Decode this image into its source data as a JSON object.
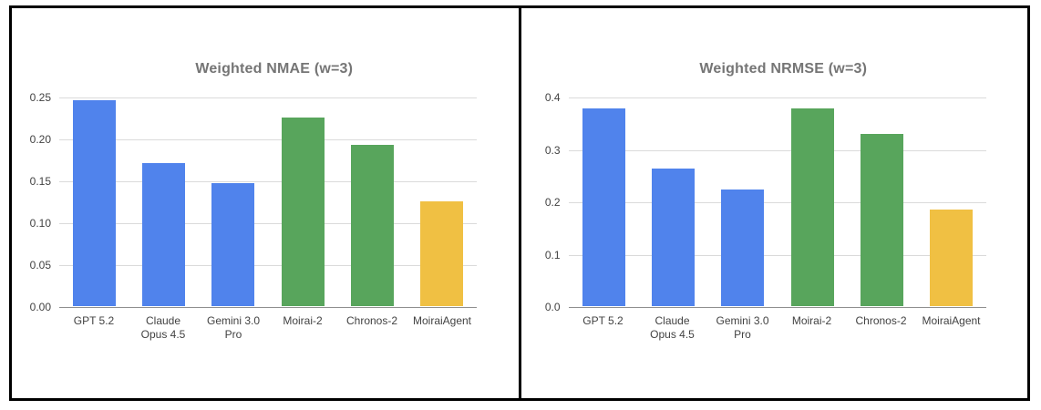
{
  "styles": {
    "frame_border_color": "#000000",
    "title_color": "#757575",
    "axis_label_color": "#424242",
    "gridline_color": "#dadada",
    "baseline_color": "#8f8f8f",
    "background_color": "#ffffff",
    "blue": "#5083ec",
    "green": "#58a55c",
    "yellow": "#f0c043"
  },
  "chart_data": [
    {
      "type": "bar",
      "title": "Weighted NMAE (w=3)",
      "categories": [
        "GPT 5.2",
        "Claude Opus 4.5",
        "Gemini 3.0 Pro",
        "Moirai-2",
        "Chronos-2",
        "MoiraiAgent"
      ],
      "category_label_lines": [
        [
          "GPT 5.2"
        ],
        [
          "Claude",
          "Opus 4.5"
        ],
        [
          "Gemini 3.0",
          "Pro"
        ],
        [
          "Moirai-2"
        ],
        [
          "Chronos-2"
        ],
        [
          "MoiraiAgent"
        ]
      ],
      "values": [
        0.246,
        0.171,
        0.147,
        0.225,
        0.192,
        0.125
      ],
      "bar_colors": [
        "#5083ec",
        "#5083ec",
        "#5083ec",
        "#58a55c",
        "#58a55c",
        "#f0c043"
      ],
      "y_ticks": [
        {
          "label": "0.00",
          "value": 0.0
        },
        {
          "label": "0.05",
          "value": 0.05
        },
        {
          "label": "0.10",
          "value": 0.1
        },
        {
          "label": "0.15",
          "value": 0.15
        },
        {
          "label": "0.20",
          "value": 0.2
        },
        {
          "label": "0.25",
          "value": 0.25
        }
      ],
      "ylim": [
        0,
        0.25
      ],
      "xlabel": "",
      "ylabel": "",
      "grid": true,
      "legend": "none"
    },
    {
      "type": "bar",
      "title": "Weighted NRMSE (w=3)",
      "categories": [
        "GPT 5.2",
        "Claude Opus 4.5",
        "Gemini 3.0 Pro",
        "Moirai-2",
        "Chronos-2",
        "MoiraiAgent"
      ],
      "category_label_lines": [
        [
          "GPT 5.2"
        ],
        [
          "Claude",
          "Opus 4.5"
        ],
        [
          "Gemini 3.0",
          "Pro"
        ],
        [
          "Moirai-2"
        ],
        [
          "Chronos-2"
        ],
        [
          "MoiraiAgent"
        ]
      ],
      "values": [
        0.377,
        0.263,
        0.222,
        0.377,
        0.328,
        0.184
      ],
      "bar_colors": [
        "#5083ec",
        "#5083ec",
        "#5083ec",
        "#58a55c",
        "#58a55c",
        "#f0c043"
      ],
      "y_ticks": [
        {
          "label": "0.0",
          "value": 0.0
        },
        {
          "label": "0.1",
          "value": 0.1
        },
        {
          "label": "0.2",
          "value": 0.2
        },
        {
          "label": "0.3",
          "value": 0.3
        },
        {
          "label": "0.4",
          "value": 0.4
        }
      ],
      "ylim": [
        0,
        0.4
      ],
      "xlabel": "",
      "ylabel": "",
      "grid": true,
      "legend": "none"
    }
  ]
}
